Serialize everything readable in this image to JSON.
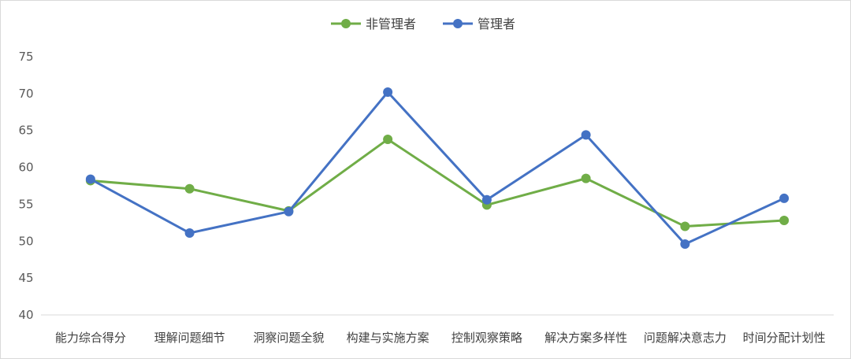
{
  "chart_data": {
    "type": "line",
    "title": "",
    "xlabel": "",
    "ylabel": "",
    "ylim": [
      40,
      75
    ],
    "y_ticks": [
      40,
      45,
      50,
      55,
      60,
      65,
      70,
      75
    ],
    "grid": false,
    "legend_position": "top",
    "categories": [
      "能力综合得分",
      "理解问题细节",
      "洞察问题全貌",
      "构建与实施方案",
      "控制观察策略",
      "解决方案多样性",
      "问题解决意志力",
      "时间分配计划性"
    ],
    "series": [
      {
        "name": "非管理者",
        "color": "#70ad47",
        "values": [
          58.2,
          57.1,
          54.1,
          63.8,
          54.9,
          58.5,
          52.0,
          52.8
        ]
      },
      {
        "name": "管理者",
        "color": "#4472c4",
        "values": [
          58.4,
          51.1,
          54.0,
          70.2,
          55.6,
          64.4,
          49.6,
          55.8
        ]
      }
    ]
  }
}
